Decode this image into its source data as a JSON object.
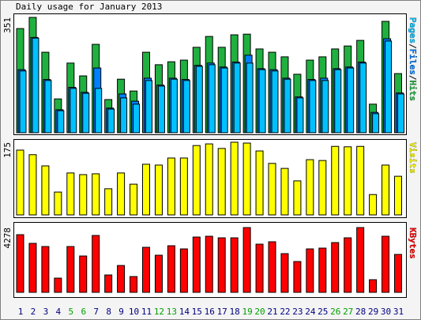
{
  "chart_data": [
    {
      "type": "bar",
      "title": "Daily usage for January 2013",
      "legend_separator": "/",
      "ylim": [
        0,
        351
      ],
      "yticks": [
        351
      ],
      "series": [
        {
          "name": "Hits",
          "color": "#20b040",
          "values": [
            317,
            351,
            245,
            103,
            212,
            173,
            269,
            101,
            163,
            127,
            245,
            207,
            216,
            221,
            260,
            293,
            260,
            298,
            300,
            255,
            245,
            231,
            178,
            221,
            231,
            255,
            264,
            281,
            87,
            339,
            180
          ]
        },
        {
          "name": "Files",
          "color": "#0080ff",
          "values": [
            192,
            290,
            162,
            70,
            138,
            123,
            197,
            75,
            118,
            96,
            166,
            145,
            166,
            162,
            205,
            212,
            200,
            215,
            236,
            195,
            192,
            166,
            109,
            162,
            166,
            195,
            200,
            215,
            62,
            286,
            121
          ]
        },
        {
          "name": "Pages",
          "color": "#00c0ff",
          "values": [
            188,
            288,
            159,
            67,
            135,
            120,
            135,
            72,
            106,
            87,
            159,
            142,
            163,
            159,
            202,
            207,
            197,
            212,
            212,
            192,
            188,
            163,
            106,
            159,
            159,
            192,
            197,
            212,
            58,
            279,
            118
          ]
        }
      ]
    },
    {
      "type": "bar",
      "ylim": [
        0,
        175
      ],
      "yticks": [
        175
      ],
      "series": [
        {
          "name": "Visits",
          "color": "#ffff00",
          "values": [
            156,
            145,
            118,
            55,
            101,
            97,
            99,
            63,
            101,
            74,
            122,
            120,
            137,
            137,
            167,
            171,
            160,
            175,
            173,
            154,
            124,
            112,
            82,
            133,
            131,
            165,
            164,
            165,
            49,
            120,
            93
          ]
        }
      ]
    },
    {
      "type": "bar",
      "ylim": [
        0,
        4278
      ],
      "yticks": [
        4278
      ],
      "categories": [
        "1",
        "2",
        "3",
        "4",
        "5",
        "6",
        "7",
        "8",
        "9",
        "10",
        "11",
        "12",
        "13",
        "14",
        "15",
        "16",
        "17",
        "18",
        "19",
        "20",
        "21",
        "22",
        "23",
        "24",
        "25",
        "26",
        "27",
        "28",
        "29",
        "30",
        "31"
      ],
      "category_colors": [
        "#000080",
        "#000080",
        "#000080",
        "#000080",
        "#00a000",
        "#00a000",
        "#000080",
        "#000080",
        "#000080",
        "#000080",
        "#000080",
        "#00a000",
        "#00a000",
        "#000080",
        "#000080",
        "#000080",
        "#000080",
        "#000080",
        "#00a000",
        "#00a000",
        "#000080",
        "#000080",
        "#000080",
        "#000080",
        "#000080",
        "#00a000",
        "#00a000",
        "#000080",
        "#000080",
        "#000080",
        "#000080"
      ],
      "series": [
        {
          "name": "KBytes",
          "color": "#ff0000",
          "values": [
            3808,
            3235,
            3026,
            939,
            3026,
            2400,
            3756,
            1148,
            1774,
            1043,
            2974,
            2452,
            3078,
            2869,
            3652,
            3704,
            3600,
            3600,
            4278,
            3182,
            3339,
            2556,
            2035,
            2869,
            2921,
            3287,
            3600,
            4278,
            835,
            3704,
            2504
          ]
        }
      ]
    }
  ]
}
